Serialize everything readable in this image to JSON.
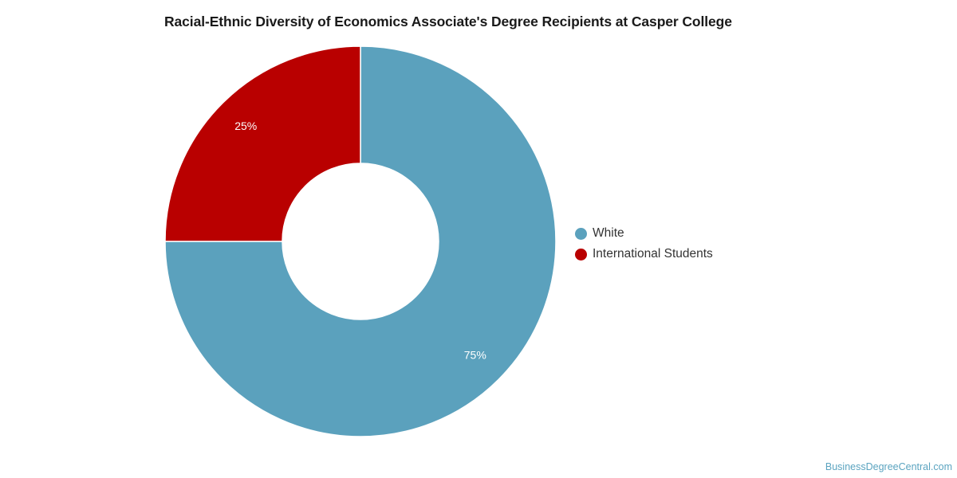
{
  "chart_data": {
    "type": "pie",
    "title": "Racial-Ethnic Diversity of Economics Associate's Degree Recipients at Casper College",
    "donut": true,
    "slices": [
      {
        "label": "White",
        "value": 75,
        "percent_label": "75%",
        "color": "#5ba1bd"
      },
      {
        "label": "International Students",
        "value": 25,
        "percent_label": "25%",
        "color": "#b90000"
      }
    ],
    "legend_position": "right"
  },
  "footer": {
    "source": "BusinessDegreeCentral.com"
  }
}
